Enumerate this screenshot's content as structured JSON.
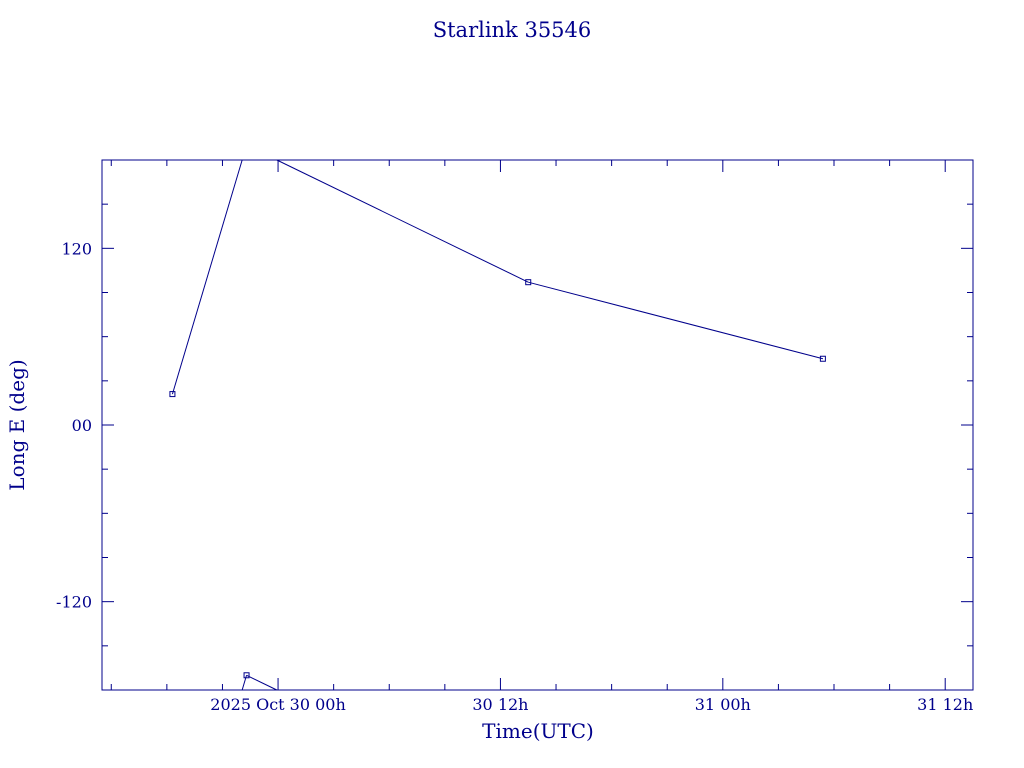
{
  "chart_data": {
    "type": "line",
    "title": "Starlink 35546",
    "xlabel": "Time(UTC)",
    "ylabel": "Long E (deg)",
    "x_units": "hours since 2025 Oct 30 00h",
    "xlim": [
      -9.5,
      37.5
    ],
    "ylim": [
      -180,
      180
    ],
    "x_ticks": [
      {
        "x": 0,
        "label": "2025 Oct 30  00h"
      },
      {
        "x": 12,
        "label": "30  12h"
      },
      {
        "x": 24,
        "label": "31  00h"
      },
      {
        "x": 36,
        "label": "31  12h"
      }
    ],
    "y_ticks": [
      {
        "y": 120,
        "label": "120"
      },
      {
        "y": 0,
        "label": "00"
      },
      {
        "y": -120,
        "label": "-120"
      }
    ],
    "grid": false,
    "legend": "none",
    "color": "#00008b",
    "series": [
      {
        "points": [
          {
            "x": -5.7,
            "y": 21
          },
          {
            "x": -1.7,
            "y": -170
          },
          {
            "x": 13.5,
            "y": 97
          },
          {
            "x": 29.4,
            "y": 45
          }
        ]
      }
    ]
  }
}
